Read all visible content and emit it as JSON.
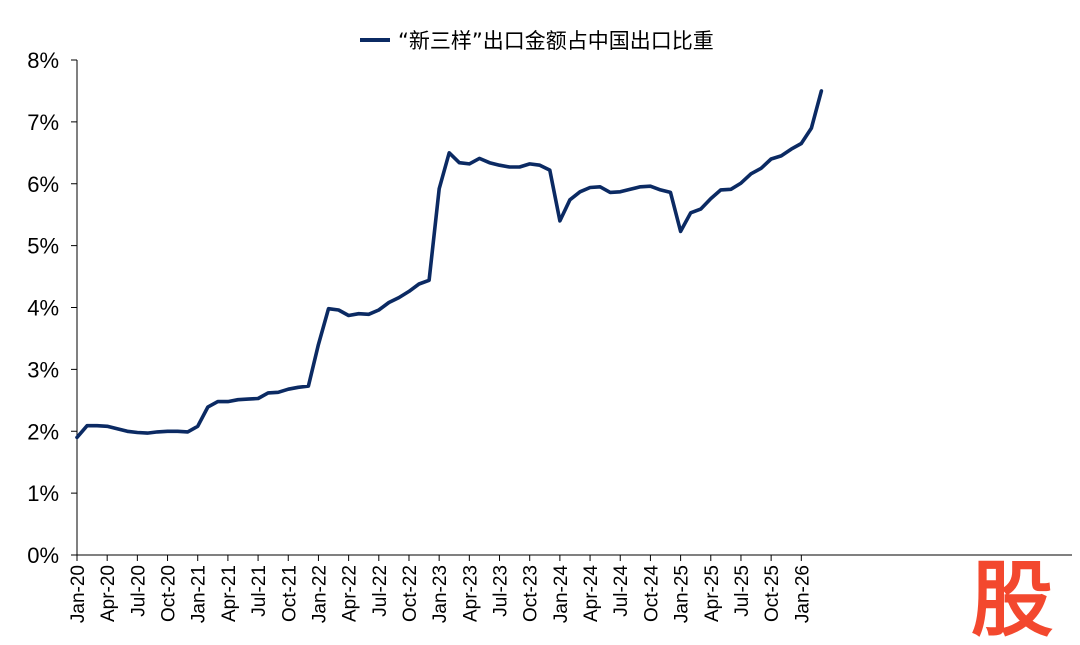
{
  "chart_data": {
    "type": "line",
    "title": "",
    "xlabel": "",
    "ylabel": "",
    "ylim": [
      0,
      0.08
    ],
    "y_ticks": [
      0,
      0.01,
      0.02,
      0.03,
      0.04,
      0.05,
      0.06,
      0.07,
      0.08
    ],
    "y_tick_labels": [
      "0%",
      "1%",
      "2%",
      "3%",
      "4%",
      "5%",
      "6%",
      "7%",
      "8%"
    ],
    "x_tick_labels": [
      "Jan-20",
      "Apr-20",
      "Jul-20",
      "Oct-20",
      "Jan-21",
      "Apr-21",
      "Jul-21",
      "Oct-21",
      "Jan-22",
      "Apr-22",
      "Jul-22",
      "Oct-22",
      "Jan-23",
      "Apr-23",
      "Jul-23",
      "Oct-23",
      "Jan-24",
      "Apr-24",
      "Jul-24",
      "Oct-24",
      "Jan-25",
      "Apr-25",
      "Jul-25",
      "Oct-25",
      "Jan-26"
    ],
    "legend": {
      "position": "top-center"
    },
    "grid": false,
    "colors": {
      "line": "#0b2a63"
    },
    "series": [
      {
        "name": "“新三样”出口金额占中国出口比重",
        "values": [
          0.019,
          0.0209,
          0.0209,
          0.0208,
          0.0204,
          0.02,
          0.0198,
          0.0197,
          0.0199,
          0.02,
          0.02,
          0.0199,
          0.0208,
          0.0239,
          0.0248,
          0.0248,
          0.0251,
          0.0252,
          0.0253,
          0.0262,
          0.0263,
          0.0268,
          0.0271,
          0.0273,
          0.034,
          0.0398,
          0.0396,
          0.0387,
          0.039,
          0.0389,
          0.0396,
          0.0408,
          0.0416,
          0.0426,
          0.0438,
          0.0444,
          0.0592,
          0.065,
          0.0634,
          0.0632,
          0.0641,
          0.0634,
          0.063,
          0.0627,
          0.0627,
          0.0632,
          0.063,
          0.0622,
          0.054,
          0.0574,
          0.0587,
          0.0594,
          0.0595,
          0.0586,
          0.0587,
          0.0591,
          0.0595,
          0.0596,
          0.059,
          0.0586,
          0.0523,
          0.0553,
          0.0559,
          0.0576,
          0.059,
          0.0591,
          0.0601,
          0.0616,
          0.0625,
          0.064,
          0.0645,
          0.0656,
          0.0665,
          0.069,
          0.075
        ]
      }
    ]
  },
  "watermark": {
    "text": "股"
  }
}
